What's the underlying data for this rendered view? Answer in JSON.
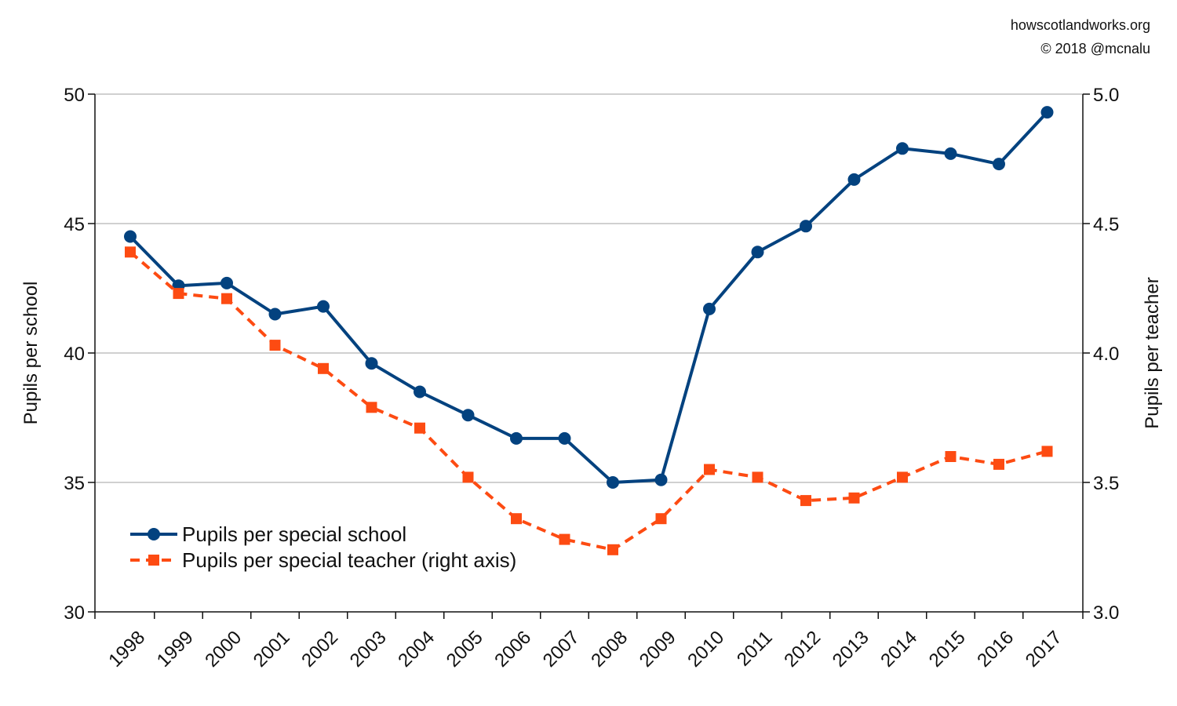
{
  "credits": {
    "site": "howscotlandworks.org",
    "copyright": "© 2018  @mcnalu"
  },
  "chart_data": {
    "type": "line",
    "x": [
      "1998",
      "1999",
      "2000",
      "2001",
      "2002",
      "2003",
      "2004",
      "2005",
      "2006",
      "2007",
      "2008",
      "2009",
      "2010",
      "2011",
      "2012",
      "2013",
      "2014",
      "2015",
      "2016",
      "2017"
    ],
    "ylabel": "Pupils per school",
    "y2label": "Pupils per teacher",
    "ylim": [
      30,
      50
    ],
    "y2lim": [
      3.0,
      5.0
    ],
    "yticks": [
      30,
      35,
      40,
      45,
      50
    ],
    "y2ticks": [
      "3.0",
      "3.5",
      "4.0",
      "4.5",
      "5.0"
    ],
    "grid": true,
    "legend_position": "bottom-left",
    "series": [
      {
        "name": "Pupils per special school",
        "axis": "left",
        "color": "#03427f",
        "marker": "circle",
        "line": "solid",
        "values": [
          44.5,
          42.6,
          42.7,
          41.5,
          41.8,
          39.6,
          38.5,
          37.6,
          36.7,
          36.7,
          35.0,
          35.1,
          41.7,
          43.9,
          44.9,
          46.7,
          47.9,
          47.7,
          47.3,
          49.3
        ]
      },
      {
        "name": "Pupils per special teacher (right axis)",
        "axis": "right",
        "color": "#fd4b12",
        "marker": "square",
        "line": "dashed",
        "values": [
          4.39,
          4.23,
          4.21,
          4.03,
          3.94,
          3.79,
          3.71,
          3.52,
          3.36,
          3.28,
          3.24,
          3.36,
          3.55,
          3.52,
          3.43,
          3.44,
          3.52,
          3.6,
          3.57,
          3.62
        ]
      }
    ]
  }
}
